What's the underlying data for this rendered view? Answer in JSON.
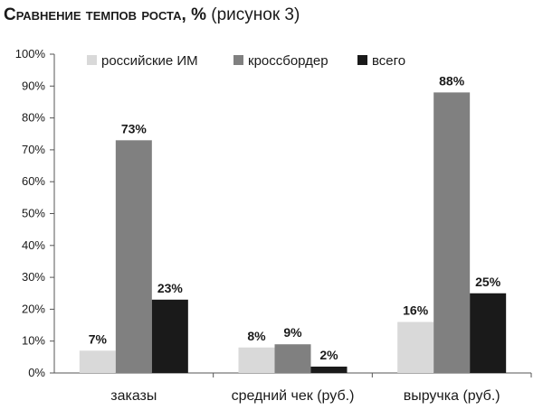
{
  "chart_data": {
    "type": "bar",
    "title": "Сравнение темпов роста, %",
    "subtitle": "(рисунок 3)",
    "categories": [
      "заказы",
      "средний чек (руб.)",
      "выручка (руб.)"
    ],
    "series": [
      {
        "name": "российские ИМ",
        "values": [
          7,
          8,
          16
        ],
        "labels": [
          "7%",
          "8%",
          "16%"
        ],
        "color": "#d9d9d9"
      },
      {
        "name": "кроссбордер",
        "values": [
          73,
          9,
          88
        ],
        "labels": [
          "73%",
          "9%",
          "88%"
        ],
        "color": "#808080"
      },
      {
        "name": "всего",
        "values": [
          23,
          2,
          25
        ],
        "labels": [
          "23%",
          "2%",
          "25%"
        ],
        "color": "#1a1a1a"
      }
    ],
    "ylim": [
      0,
      100
    ],
    "yticks": [
      "0%",
      "10%",
      "20%",
      "30%",
      "40%",
      "50%",
      "60%",
      "70%",
      "80%",
      "90%",
      "100%"
    ],
    "grid": false,
    "legend": "top"
  }
}
